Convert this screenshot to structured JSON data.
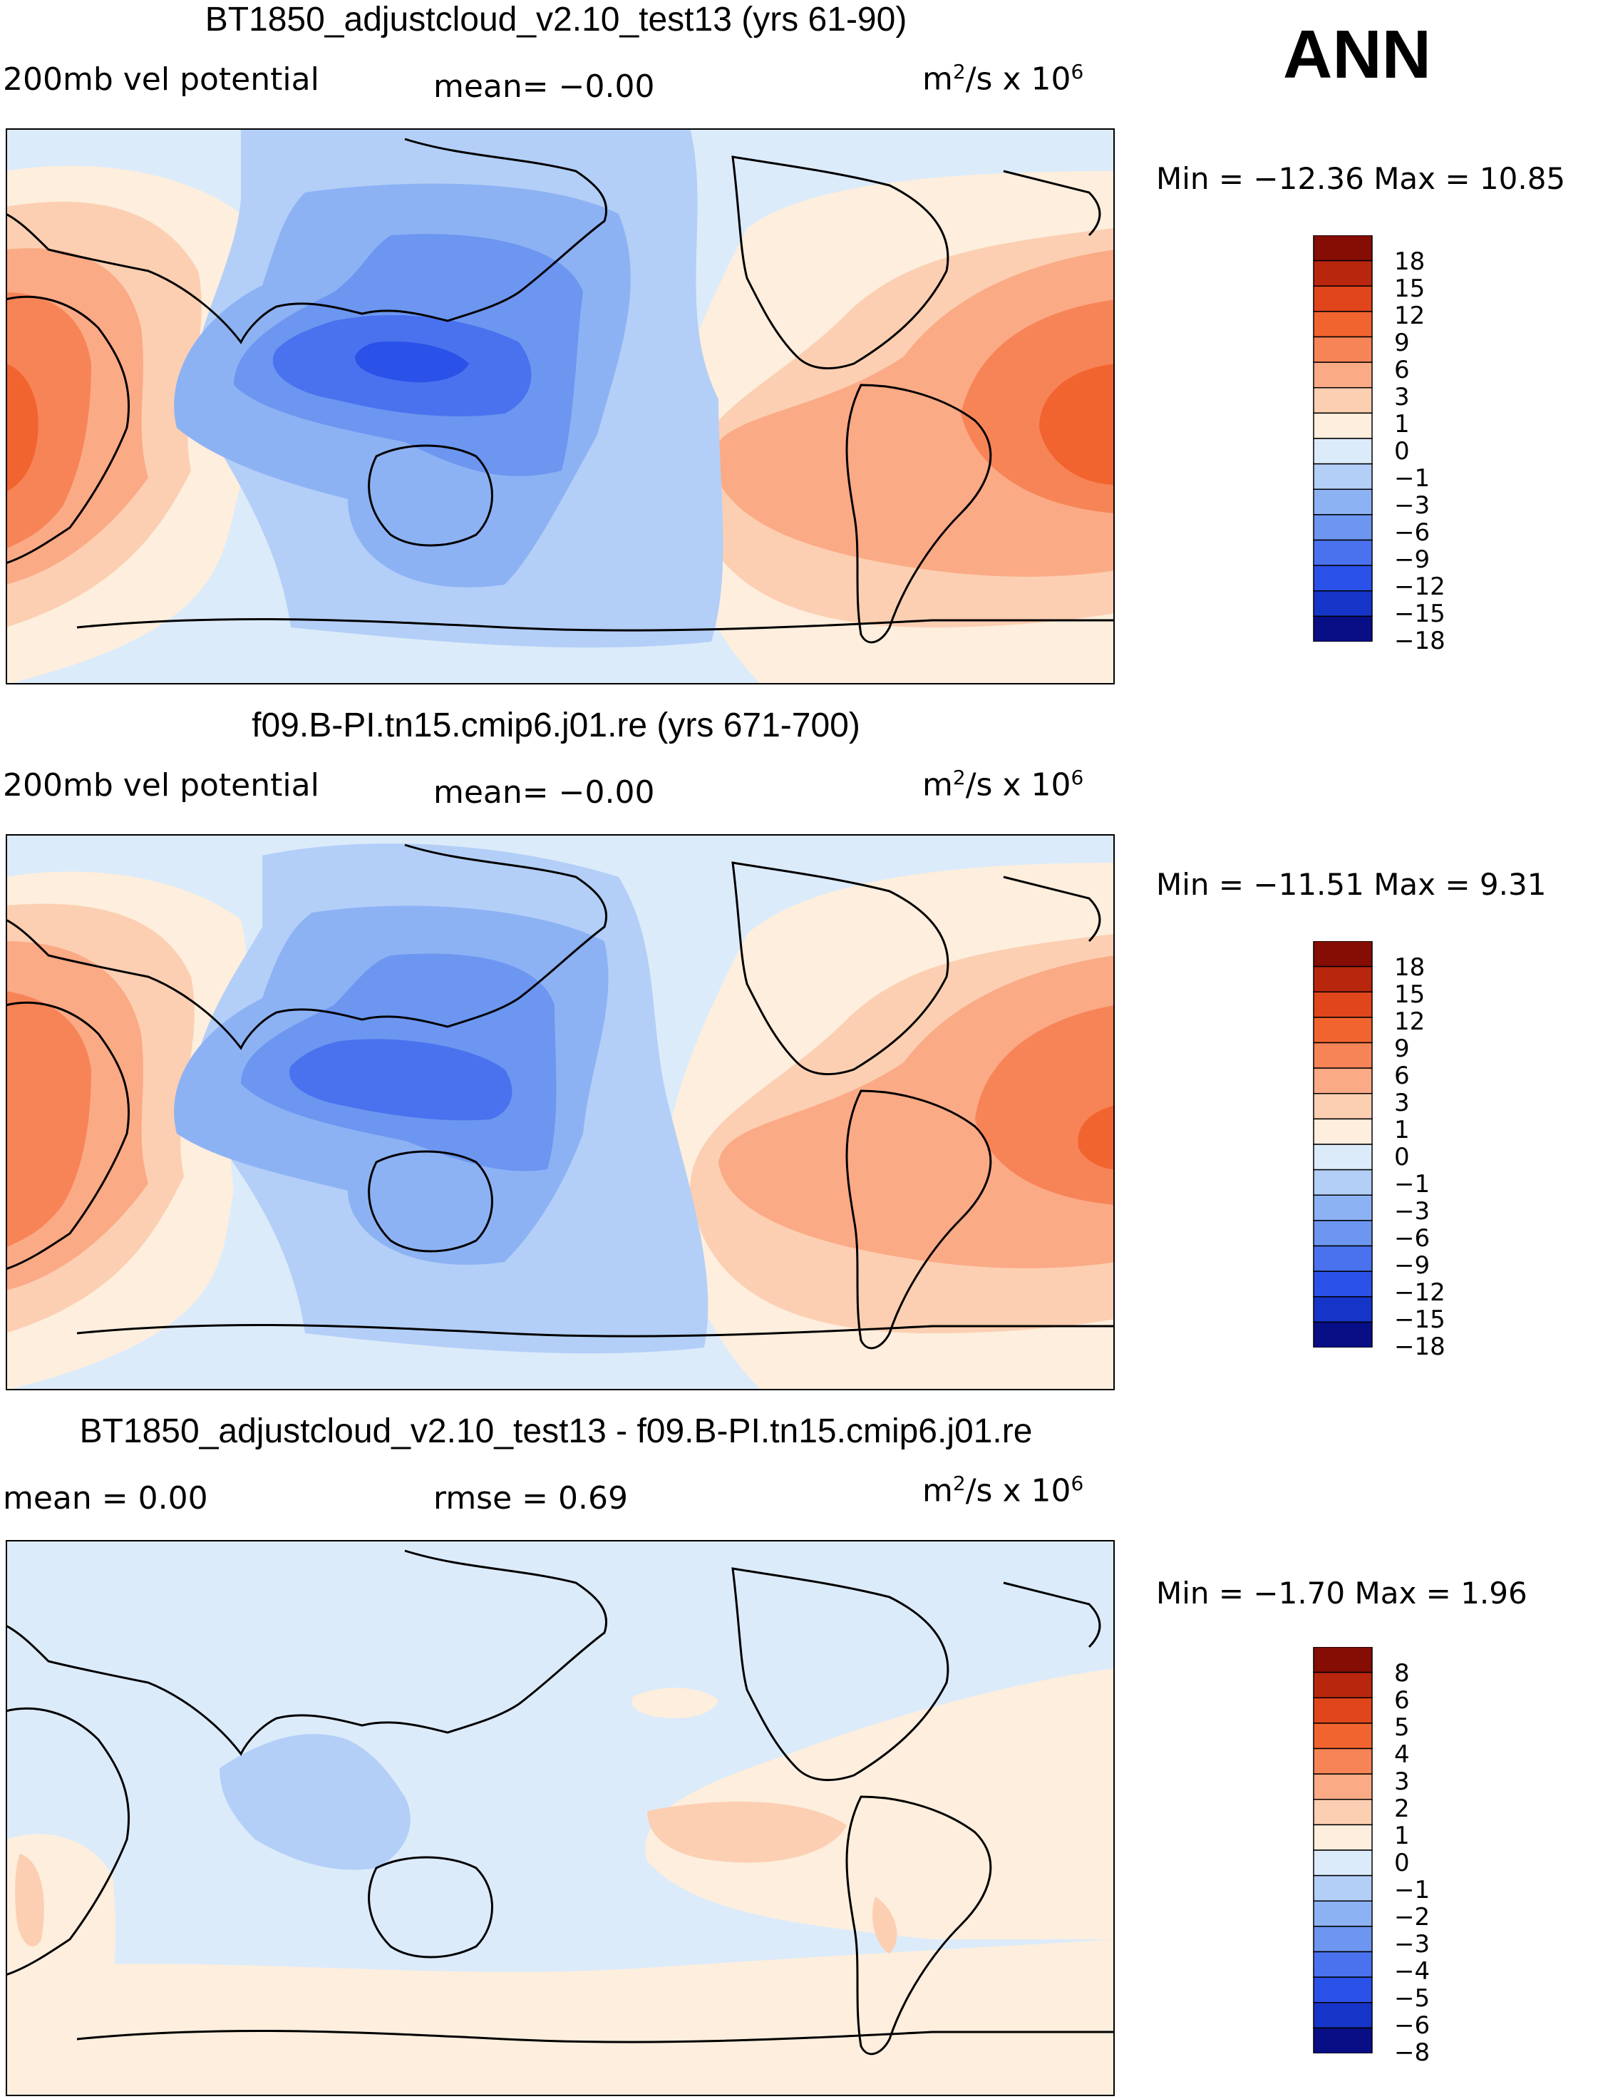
{
  "season": "ANN",
  "palette": {
    "pos": [
      "#FDEEDD",
      "#FCCFB2",
      "#FBAA86",
      "#F78457",
      "#F2642F",
      "#E0451C",
      "#B9260E",
      "#850D04"
    ],
    "neg": [
      "#DCEBFA",
      "#B3CFF7",
      "#8DB2F4",
      "#6C96F0",
      "#4A72EE",
      "#2A51E8",
      "#1535C8",
      "#080E86"
    ],
    "land_outline": "#000000"
  },
  "panels": [
    {
      "title": "BT1850_adjustcloud_v2.10_test13 (yrs 61-90)",
      "left": "200mb vel potential",
      "mid": "mean=   −0.00",
      "units_base": "m",
      "units_exp": "2",
      "units_mid": "/s x 10",
      "units_exp2": "6",
      "minmax": "Min = −12.36 Max =  10.85",
      "colorbar": [
        "18",
        "15",
        "12",
        "9",
        "6",
        "3",
        "1",
        "0",
        "−1",
        "−3",
        "−6",
        "−9",
        "−12",
        "−15",
        "−18"
      ]
    },
    {
      "title": "f09.B-PI.tn15.cmip6.j01.re (yrs 671-700)",
      "left": "200mb vel potential",
      "mid": "mean=   −0.00",
      "units_base": "m",
      "units_exp": "2",
      "units_mid": "/s x 10",
      "units_exp2": "6",
      "minmax": "Min = −11.51 Max =   9.31",
      "colorbar": [
        "18",
        "15",
        "12",
        "9",
        "6",
        "3",
        "1",
        "0",
        "−1",
        "−3",
        "−6",
        "−9",
        "−12",
        "−15",
        "−18"
      ]
    },
    {
      "title": "BT1850_adjustcloud_v2.10_test13 - f09.B-PI.tn15.cmip6.j01.re",
      "left": "mean =    0.00",
      "mid": "rmse =    0.69",
      "units_base": "m",
      "units_exp": "2",
      "units_mid": "/s x 10",
      "units_exp2": "6",
      "minmax": "Min =  −1.70 Max =   1.96",
      "colorbar": [
        "8",
        "6",
        "5",
        "4",
        "3",
        "2",
        "1",
        "0",
        "−1",
        "−2",
        "−3",
        "−4",
        "−5",
        "−6",
        "−8"
      ]
    }
  ]
}
